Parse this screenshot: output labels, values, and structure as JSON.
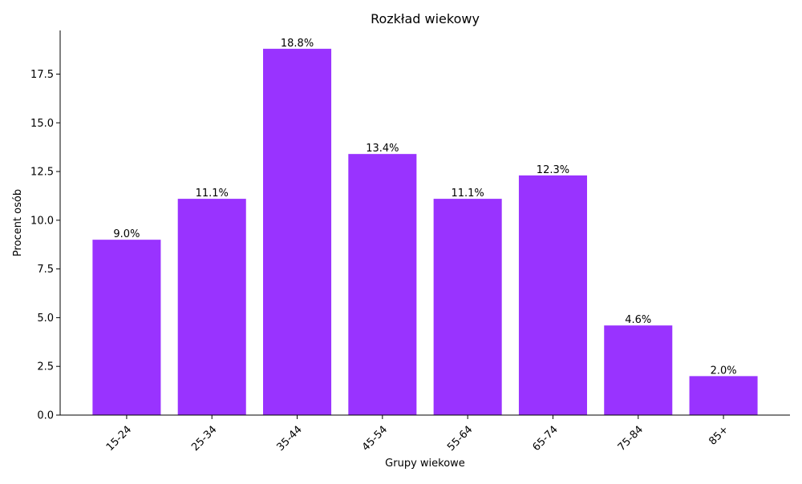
{
  "chart_data": {
    "type": "bar",
    "title": "Rozkład wiekowy",
    "xlabel": "Grupy wiekowe",
    "ylabel": "Procent osób",
    "categories": [
      "15-24",
      "25-34",
      "35-44",
      "45-54",
      "55-64",
      "65-74",
      "75-84",
      "85+"
    ],
    "values": [
      9.0,
      11.1,
      18.8,
      13.4,
      11.1,
      12.3,
      4.6,
      2.0
    ],
    "data_labels": [
      "9.0%",
      "11.1%",
      "18.8%",
      "13.4%",
      "11.1%",
      "12.3%",
      "4.6%",
      "2.0%"
    ],
    "yticks": [
      0.0,
      2.5,
      5.0,
      7.5,
      10.0,
      12.5,
      15.0,
      17.5
    ],
    "ytick_labels": [
      "0.0",
      "2.5",
      "5.0",
      "7.5",
      "10.0",
      "12.5",
      "15.0",
      "17.5"
    ],
    "ylim": [
      0,
      19.74
    ],
    "xlim": [
      -0.78,
      7.78
    ],
    "grid": false,
    "legend": "none",
    "bar_color": "#9933ff"
  }
}
